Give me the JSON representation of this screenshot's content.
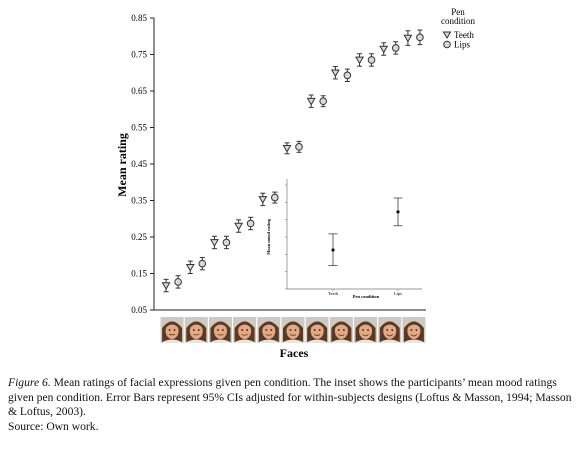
{
  "chart_data": [
    {
      "type": "scatter",
      "ylabel": "Mean rating",
      "xlabel": "Faces",
      "ylim": [
        0.05,
        0.85
      ],
      "yticks": [
        "0.05",
        "0.15",
        "0.25",
        "0.35",
        "0.45",
        "0.55",
        "0.65",
        "0.75",
        "0.85"
      ],
      "faces": 11,
      "error_bars": true,
      "legend": {
        "title_line1": "Pen",
        "title_line2": "condition",
        "placement": "top-right",
        "items": [
          {
            "label": "Teeth",
            "marker": "triangle-down"
          },
          {
            "label": "Lips",
            "marker": "circle"
          }
        ]
      },
      "series": [
        {
          "name": "Teeth",
          "marker": "triangle-down",
          "values": [
            0.117,
            0.167,
            0.235,
            0.28,
            0.353,
            0.493,
            0.622,
            0.7,
            0.735,
            0.765,
            0.795
          ],
          "err": [
            0.017,
            0.017,
            0.017,
            0.017,
            0.017,
            0.015,
            0.017,
            0.017,
            0.017,
            0.017,
            0.02
          ]
        },
        {
          "name": "Lips",
          "marker": "circle",
          "values": [
            0.127,
            0.177,
            0.235,
            0.287,
            0.358,
            0.497,
            0.622,
            0.693,
            0.735,
            0.768,
            0.797
          ],
          "err": [
            0.017,
            0.017,
            0.017,
            0.017,
            0.015,
            0.015,
            0.015,
            0.017,
            0.017,
            0.017,
            0.02
          ]
        }
      ]
    },
    {
      "type": "scatter",
      "inset": true,
      "xlabel": "Pen condition",
      "ylabel": "Mean mood rating",
      "categories": [
        "Teeth",
        "Lips"
      ],
      "values": [
        0.325,
        0.545
      ],
      "ci_low": [
        0.235,
        0.465
      ],
      "ci_high": [
        0.418,
        0.625
      ]
    }
  ],
  "caption": {
    "figure_label": "Figure 6.",
    "text": " Mean ratings of facial expressions given pen condition. The inset shows the participants’ mean mood ratings given pen condition. Error Bars represent 95% CIs adjusted for within-subjects designs (Loftus & Masson, 1994; Masson & Loftus, 2003)."
  },
  "source": "Source: Own work.",
  "colors": {
    "axis": "#222222",
    "marker": "#333333",
    "marker_fill": "#d9d9d9",
    "skin": "#e2a987",
    "hair": "#5a3a22",
    "face_bg": "#cfc9c2"
  }
}
